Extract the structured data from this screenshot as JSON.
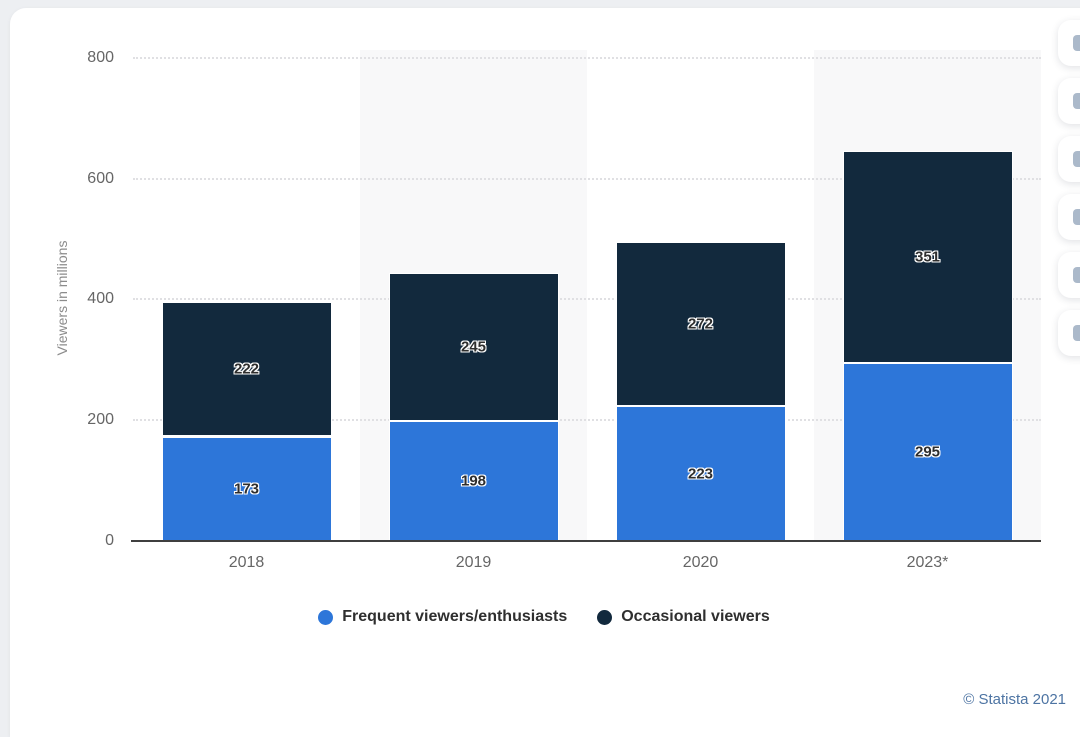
{
  "page": {
    "copyright": "© Statista 2021"
  },
  "colors": {
    "accent_blue": "#2D76D9",
    "dark_navy": "#12293D",
    "plot_band": "#F8F8F9",
    "copyright_blue": "#4D74A3",
    "page_background": "#EDEFF2"
  },
  "toolbar": {
    "buttons": [
      {
        "icon": "cut-off-icon-1"
      },
      {
        "icon": "cut-off-icon-2"
      },
      {
        "icon": "cut-off-icon-3"
      },
      {
        "icon": "cut-off-icon-4"
      },
      {
        "icon": "cut-off-icon-5"
      },
      {
        "icon": "cut-off-icon-6"
      }
    ]
  },
  "chart_data": {
    "type": "bar",
    "stacked": true,
    "title": "",
    "categories": [
      "2018",
      "2019",
      "2020",
      "2023*"
    ],
    "series": [
      {
        "name": "Frequent viewers/enthusiasts",
        "color": "#2D76D9",
        "values": [
          173,
          198,
          223,
          295
        ]
      },
      {
        "name": "Occasional viewers",
        "color": "#12293D",
        "values": [
          222,
          245,
          272,
          351
        ]
      }
    ],
    "totals": [
      395,
      443,
      495,
      646
    ],
    "xlabel": "",
    "ylabel": "Viewers in millions",
    "ylim": [
      0,
      800
    ],
    "yticks": [
      0,
      200,
      400,
      600,
      800
    ],
    "grid": "horizontal-dotted",
    "data_labels": true,
    "legend_position": "bottom-center",
    "plot_bands_behind_categories": [
      "2019",
      "2023*"
    ]
  }
}
